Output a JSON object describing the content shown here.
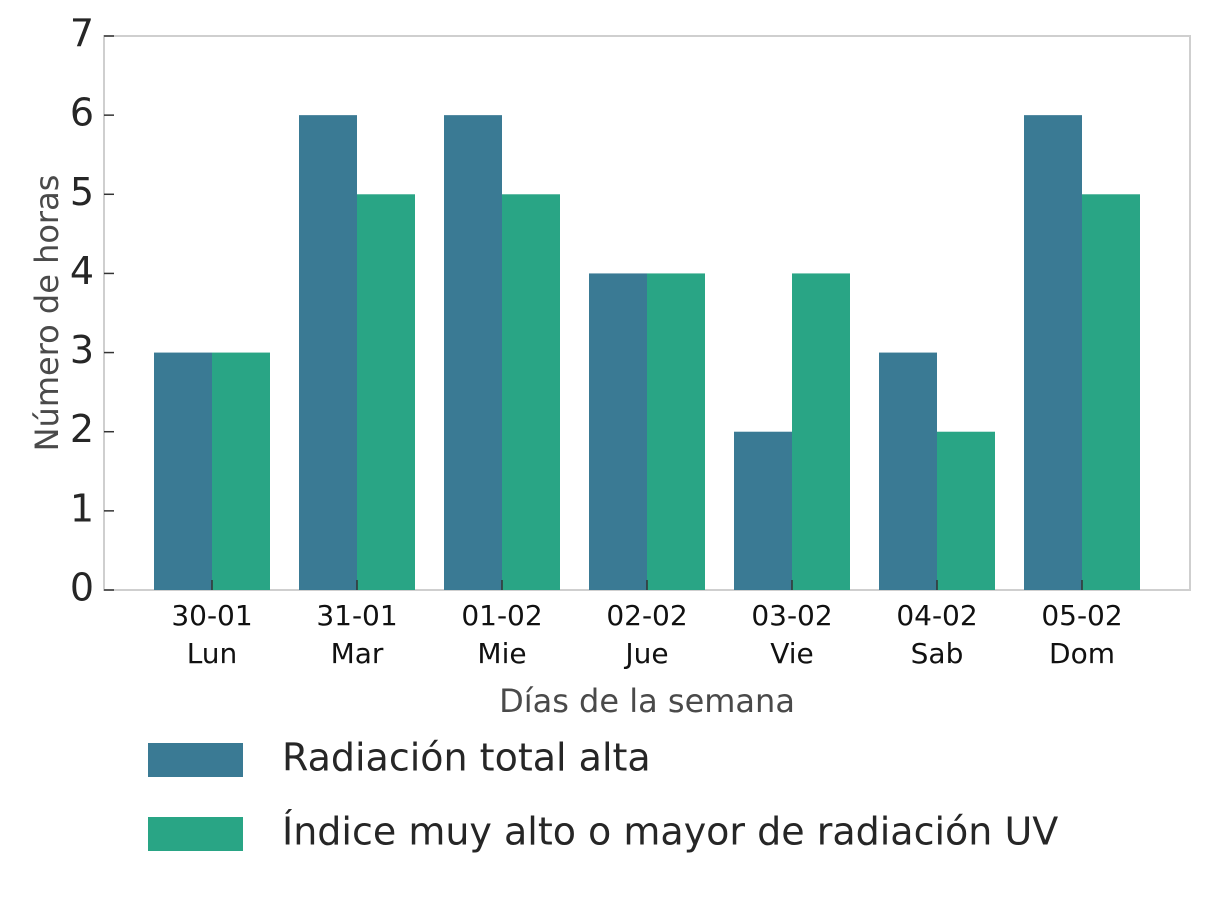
{
  "chart_data": {
    "type": "bar",
    "categories": [
      [
        "30-01",
        "Lun"
      ],
      [
        "31-01",
        "Mar"
      ],
      [
        "01-02",
        "Mie"
      ],
      [
        "02-02",
        "Jue"
      ],
      [
        "03-02",
        "Vie"
      ],
      [
        "04-02",
        "Sab"
      ],
      [
        "05-02",
        "Dom"
      ]
    ],
    "series": [
      {
        "name": "Radiación total alta",
        "color": "#3a7a94",
        "values": [
          3,
          6,
          6,
          4,
          2,
          3,
          6
        ]
      },
      {
        "name": "Índice muy alto o mayor de radiación UV",
        "color": "#29a585",
        "values": [
          3,
          5,
          5,
          4,
          4,
          2,
          5
        ]
      }
    ],
    "title": "",
    "xlabel": "Días de la semana",
    "ylabel": "Número de horas",
    "ylim": [
      0,
      7
    ],
    "yticks": [
      0,
      1,
      2,
      3,
      4,
      5,
      6,
      7
    ],
    "grid": false,
    "legend_position": "below"
  }
}
